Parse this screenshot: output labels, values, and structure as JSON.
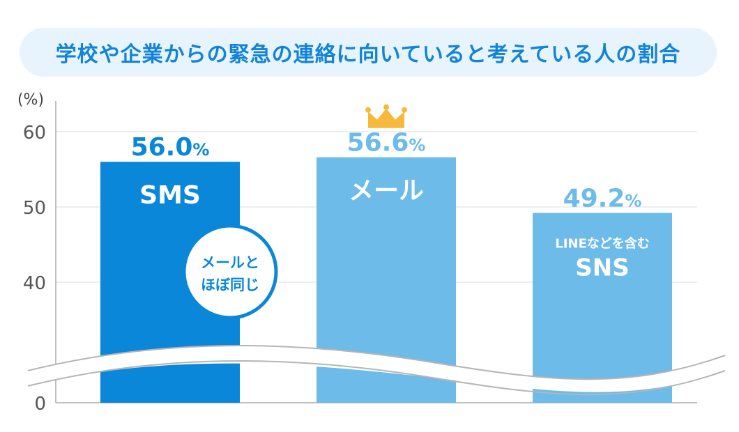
{
  "chart_data": {
    "type": "bar",
    "title": "学校や企業からの緊急の連絡に向いていると考えている人の割合",
    "ylabel": "(%)",
    "y_ticks": [
      "0",
      "40",
      "50",
      "60"
    ],
    "ylim": [
      0,
      60
    ],
    "axis_break": true,
    "grid": true,
    "categories": [
      "SMS",
      "メール",
      "LINEなどを含む SNS"
    ],
    "bars": [
      {
        "label": "SMS",
        "value": 56.0,
        "value_num": "56.0",
        "unit": "%",
        "color": "#0a87d8",
        "value_color": "#0a87d8",
        "badge": [
          "メールと",
          "ほぼ同じ"
        ]
      },
      {
        "label": "メール",
        "value": 56.6,
        "value_num": "56.6",
        "unit": "%",
        "color": "#6cbbe9",
        "value_color": "#6cbbe9",
        "crown": true
      },
      {
        "label": "SNS",
        "sublabel": "LINEなどを含む",
        "value": 49.2,
        "value_num": "49.2",
        "unit": "%",
        "color": "#6cbbe9",
        "value_color": "#6cbbe9"
      }
    ],
    "colors": {
      "grid": "#dddddd",
      "axis": "#aaaaaa",
      "crown": "#f6b93b",
      "badge_border": "#0a87d8"
    }
  }
}
